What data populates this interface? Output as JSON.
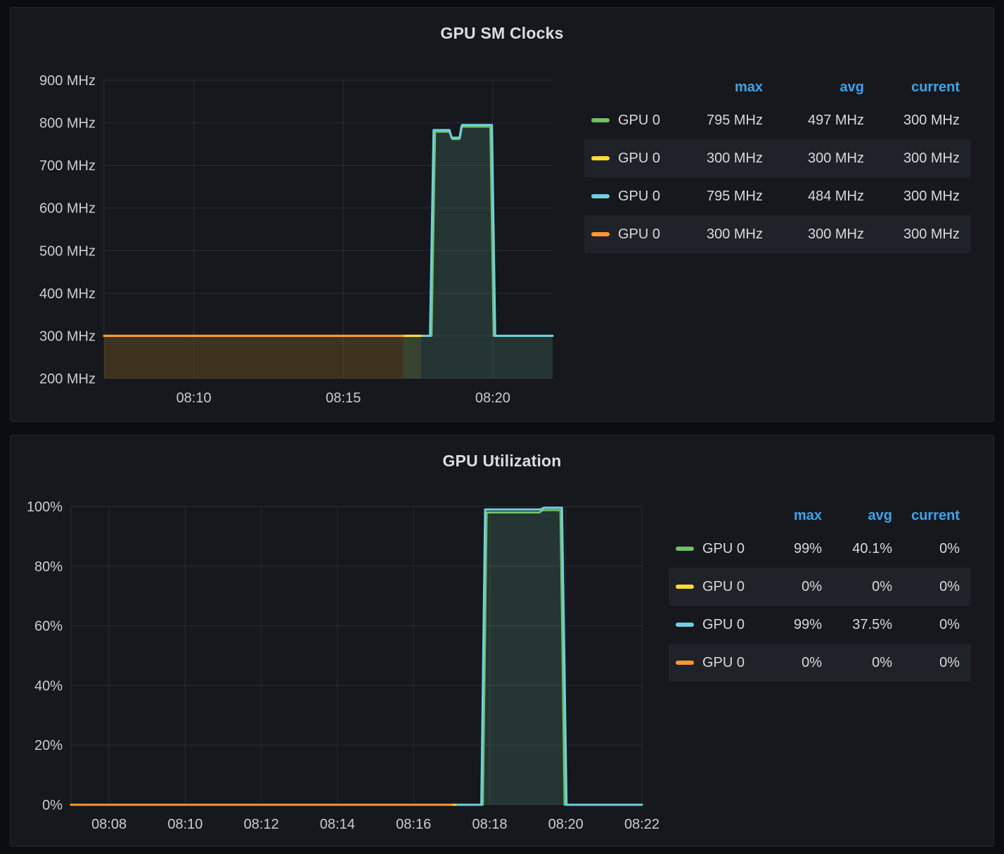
{
  "theme": {
    "page_background": "#0b0c0f",
    "panel_background": "#16181d",
    "text_color": "#d8d9da",
    "legend_header_color": "#3ba4ec",
    "grid_color": "rgba(204,208,222,0.10)",
    "series_green": "#73BF69",
    "series_yellow": "#FADE2A",
    "series_cyan": "#6ED0E0",
    "series_orange": "#FF9830"
  },
  "panels": [
    {
      "title": "GPU SM Clocks",
      "legend": {
        "headers": [
          "max",
          "avg",
          "current"
        ],
        "rows": [
          {
            "key": "green",
            "label": "GPU 0",
            "color": "#73BF69",
            "max": "795 MHz",
            "avg": "497 MHz",
            "current": "300 MHz"
          },
          {
            "key": "yellow",
            "label": "GPU 0",
            "color": "#FADE2A",
            "max": "300 MHz",
            "avg": "300 MHz",
            "current": "300 MHz"
          },
          {
            "key": "cyan",
            "label": "GPU 0",
            "color": "#6ED0E0",
            "max": "795 MHz",
            "avg": "484 MHz",
            "current": "300 MHz"
          },
          {
            "key": "orange",
            "label": "GPU 0",
            "color": "#FF9830",
            "max": "300 MHz",
            "avg": "300 MHz",
            "current": "300 MHz"
          }
        ]
      }
    },
    {
      "title": "GPU Utilization",
      "legend": {
        "headers": [
          "max",
          "avg",
          "current"
        ],
        "rows": [
          {
            "key": "green",
            "label": "GPU 0",
            "color": "#73BF69",
            "max": "99%",
            "avg": "40.1%",
            "current": "0%"
          },
          {
            "key": "yellow",
            "label": "GPU 0",
            "color": "#FADE2A",
            "max": "0%",
            "avg": "0%",
            "current": "0%"
          },
          {
            "key": "cyan",
            "label": "GPU 0",
            "color": "#6ED0E0",
            "max": "99%",
            "avg": "37.5%",
            "current": "0%"
          },
          {
            "key": "orange",
            "label": "GPU 0",
            "color": "#FF9830",
            "max": "0%",
            "avg": "0%",
            "current": "0%"
          }
        ]
      }
    }
  ],
  "chart_data": [
    {
      "type": "line",
      "title": "GPU SM Clocks",
      "xlabel": "",
      "ylabel": "",
      "x_unit": "minutes after 08:00",
      "x_range": [
        7,
        22
      ],
      "y_range": [
        200,
        900
      ],
      "grid": true,
      "legend_position": "right-table",
      "x_ticks": [
        {
          "x": 10,
          "label": "08:10"
        },
        {
          "x": 15,
          "label": "08:15"
        },
        {
          "x": 20,
          "label": "08:20"
        }
      ],
      "y_ticks": [
        {
          "y": 200,
          "label": "200 MHz"
        },
        {
          "y": 300,
          "label": "300 MHz"
        },
        {
          "y": 400,
          "label": "400 MHz"
        },
        {
          "y": 500,
          "label": "500 MHz"
        },
        {
          "y": 600,
          "label": "600 MHz"
        },
        {
          "y": 700,
          "label": "700 MHz"
        },
        {
          "y": 800,
          "label": "800 MHz"
        },
        {
          "y": 900,
          "label": "900 MHz"
        }
      ],
      "series": [
        {
          "key": "green",
          "name": "GPU 0",
          "color": "#73BF69",
          "points": [
            [
              17,
              300
            ],
            [
              17.95,
              300
            ],
            [
              18.07,
              779
            ],
            [
              18.55,
              779
            ],
            [
              18.65,
              762
            ],
            [
              18.88,
              762
            ],
            [
              18.95,
              791
            ],
            [
              19.92,
              791
            ],
            [
              20.03,
              300
            ],
            [
              22,
              300
            ]
          ]
        },
        {
          "key": "cyan",
          "name": "GPU 0",
          "color": "#6ED0E0",
          "points": [
            [
              17,
              300
            ],
            [
              17.9,
              300
            ],
            [
              18.02,
              783
            ],
            [
              18.55,
              783
            ],
            [
              18.62,
              765
            ],
            [
              18.9,
              765
            ],
            [
              18.97,
              795
            ],
            [
              19.97,
              795
            ],
            [
              20.08,
              300
            ],
            [
              22,
              300
            ]
          ]
        },
        {
          "key": "yellow",
          "name": "GPU 0",
          "color": "#FADE2A",
          "points": [
            [
              7,
              300
            ],
            [
              17.6,
              300
            ]
          ]
        },
        {
          "key": "orange",
          "name": "GPU 0",
          "color": "#FF9830",
          "points": [
            [
              7,
              300
            ],
            [
              17,
              300
            ]
          ]
        }
      ]
    },
    {
      "type": "line",
      "title": "GPU Utilization",
      "xlabel": "",
      "ylabel": "",
      "x_unit": "minutes after 08:00",
      "x_range": [
        7,
        22
      ],
      "y_range": [
        0,
        100
      ],
      "grid": true,
      "legend_position": "right-table",
      "x_ticks": [
        {
          "x": 8,
          "label": "08:08"
        },
        {
          "x": 10,
          "label": "08:10"
        },
        {
          "x": 12,
          "label": "08:12"
        },
        {
          "x": 14,
          "label": "08:14"
        },
        {
          "x": 16,
          "label": "08:16"
        },
        {
          "x": 18,
          "label": "08:18"
        },
        {
          "x": 20,
          "label": "08:20"
        },
        {
          "x": 22,
          "label": "08:22"
        }
      ],
      "y_ticks": [
        {
          "y": 0,
          "label": "0%"
        },
        {
          "y": 20,
          "label": "20%"
        },
        {
          "y": 40,
          "label": "40%"
        },
        {
          "y": 60,
          "label": "60%"
        },
        {
          "y": 80,
          "label": "80%"
        },
        {
          "y": 100,
          "label": "100%"
        }
      ],
      "series": [
        {
          "key": "green",
          "name": "GPU 0",
          "color": "#73BF69",
          "points": [
            [
              17,
              0
            ],
            [
              17.82,
              0
            ],
            [
              17.92,
              98
            ],
            [
              19.3,
              98
            ],
            [
              19.4,
              98.8
            ],
            [
              19.86,
              98.8
            ],
            [
              19.97,
              0
            ],
            [
              22,
              0
            ]
          ]
        },
        {
          "key": "cyan",
          "name": "GPU 0",
          "color": "#6ED0E0",
          "points": [
            [
              17,
              0
            ],
            [
              17.78,
              0
            ],
            [
              17.88,
              99
            ],
            [
              19.33,
              99
            ],
            [
              19.43,
              99.6
            ],
            [
              19.9,
              99.6
            ],
            [
              20.02,
              0
            ],
            [
              22,
              0
            ]
          ]
        },
        {
          "key": "yellow",
          "name": "GPU 0",
          "color": "#FADE2A",
          "points": [
            [
              7,
              0
            ],
            [
              17.1,
              0
            ]
          ]
        },
        {
          "key": "orange",
          "name": "GPU 0",
          "color": "#FF9830",
          "points": [
            [
              7,
              0
            ],
            [
              17,
              0
            ]
          ]
        }
      ]
    }
  ]
}
